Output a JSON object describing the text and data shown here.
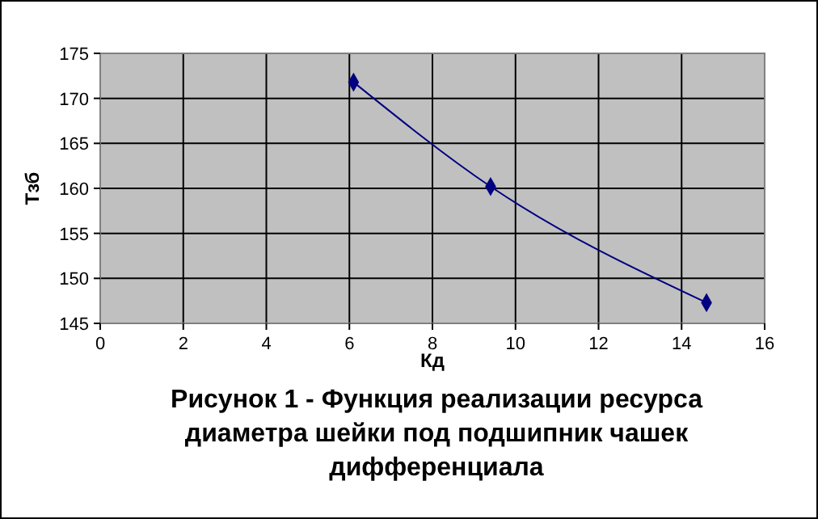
{
  "chart_data": {
    "type": "line",
    "title": "Рисунок 1 - Функция реализации ресурса диаметра шейки под подшипник чашек дифференциала",
    "xlabel": "Кд",
    "ylabel": "Тзб",
    "x": [
      6.1,
      9.4,
      14.6
    ],
    "series": [
      {
        "color": "#000080",
        "values": [
          171.8,
          160.2,
          147.3
        ]
      }
    ],
    "xlim": [
      0,
      16
    ],
    "xticks": [
      0,
      2,
      4,
      6,
      8,
      10,
      12,
      14,
      16
    ],
    "ylim": [
      145,
      175
    ],
    "yticks": [
      145,
      150,
      155,
      160,
      165,
      170,
      175
    ],
    "grid": true,
    "marker": "diamond",
    "line_style": "solid"
  }
}
